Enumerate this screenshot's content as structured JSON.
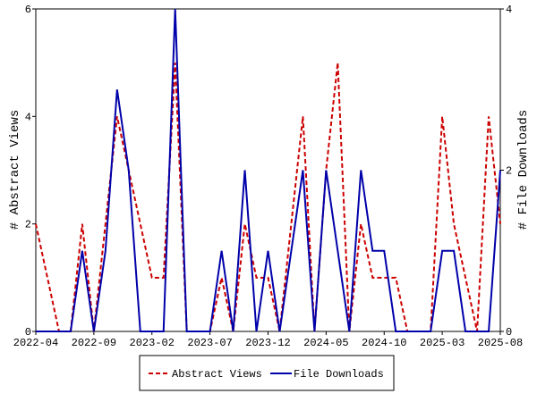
{
  "chart_data": {
    "type": "line",
    "categories": [
      "2022-04",
      null,
      null,
      null,
      null,
      "2022-09",
      null,
      null,
      null,
      null,
      "2023-02",
      null,
      null,
      null,
      null,
      "2023-07",
      null,
      null,
      null,
      null,
      "2023-12",
      null,
      null,
      null,
      null,
      "2024-05",
      null,
      null,
      null,
      null,
      "2024-10",
      null,
      null,
      null,
      null,
      "2025-03",
      null,
      null,
      null,
      null,
      "2025-08"
    ],
    "y_label": "# Abstract Views",
    "y2_label": "# File Downloads",
    "ylim": [
      0,
      6
    ],
    "yticks": [
      0,
      2,
      4,
      6
    ],
    "y2lim": [
      0,
      4
    ],
    "y2ticks": [
      0,
      2,
      4
    ],
    "series": [
      {
        "name": "Abstract Views",
        "color": "#cc0000",
        "dash": true,
        "values": [
          2,
          1,
          0,
          0,
          2,
          0,
          2,
          4,
          3,
          2,
          1,
          1,
          5,
          0,
          0,
          0,
          1,
          0,
          2,
          1,
          1,
          0,
          2,
          4,
          0,
          3,
          5,
          0,
          2,
          1,
          1,
          1,
          0,
          0,
          0,
          4,
          2,
          1,
          0,
          4,
          2
        ]
      },
      {
        "name": "File Downloads",
        "color": "#0000aa",
        "axis": "y2",
        "dash": false,
        "values": [
          0,
          0,
          0,
          0,
          1,
          0,
          1,
          3,
          2,
          0,
          0,
          0,
          4,
          0,
          0,
          0,
          1,
          0,
          2,
          0,
          1,
          0,
          1,
          2,
          0,
          2,
          1,
          0,
          2,
          1,
          1,
          0,
          0,
          0,
          0,
          1,
          1,
          0,
          0,
          0,
          2
        ]
      }
    ],
    "legend": "bottom"
  }
}
